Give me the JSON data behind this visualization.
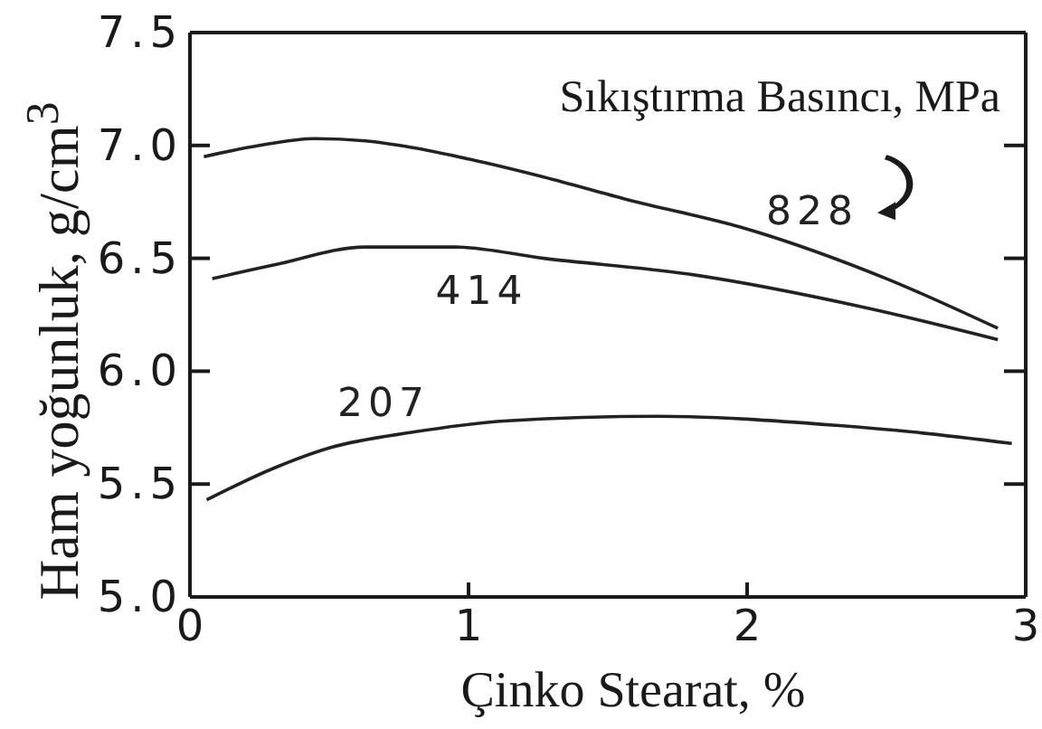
{
  "chart_data": {
    "type": "line",
    "xlabel": "Çinko Stearat, %",
    "ylabel": "Ham yoğunluk, g/cm$^{3}$",
    "legend_title": "Sıkıştırma Basıncı, MPa",
    "xlim": [
      0,
      3
    ],
    "xticks": [
      0,
      1,
      2,
      3
    ],
    "ylim": [
      5,
      7.5
    ],
    "yticks": [
      {
        "value": 5,
        "label": "5.0"
      },
      5.5,
      {
        "value": 6,
        "label": "6.0"
      },
      6.5,
      {
        "value": 7,
        "label": "7.0"
      },
      7.5
    ],
    "series": [
      {
        "name": "828",
        "color": "#222222",
        "x": [
          0.05,
          0.25,
          0.45,
          0.63,
          0.8,
          1.0,
          1.27,
          1.57,
          2.0,
          2.5,
          2.9
        ],
        "values": [
          6.95,
          7.0,
          7.03,
          7.02,
          6.99,
          6.94,
          6.86,
          6.76,
          6.63,
          6.41,
          6.19
        ]
      },
      {
        "name": "414",
        "color": "#222222",
        "x": [
          0.08,
          0.3,
          0.63,
          0.95,
          1.27,
          1.79,
          2.43,
          2.9
        ],
        "values": [
          6.41,
          6.47,
          6.55,
          6.55,
          6.5,
          6.43,
          6.28,
          6.14
        ]
      },
      {
        "name": "207",
        "color": "#222222",
        "x": [
          0.06,
          0.3,
          0.5,
          0.8,
          1.14,
          1.68,
          2.32,
          2.6,
          2.95
        ],
        "values": [
          5.43,
          5.57,
          5.66,
          5.73,
          5.78,
          5.8,
          5.76,
          5.73,
          5.68
        ]
      }
    ]
  }
}
